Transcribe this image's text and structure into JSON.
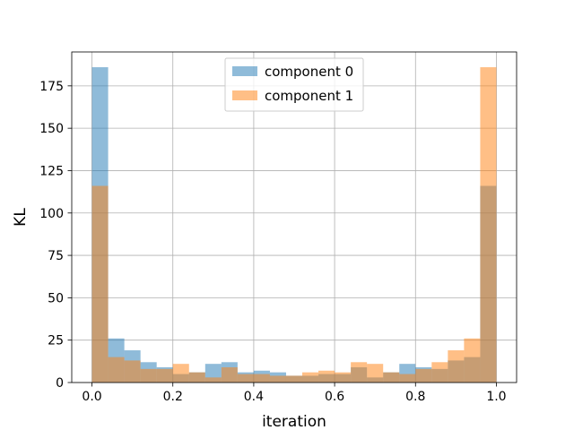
{
  "chart_data": {
    "type": "bar",
    "subtype": "overlaid-histogram",
    "title": "",
    "xlabel": "iteration",
    "ylabel": "KL",
    "xlim": [
      -0.05,
      1.05
    ],
    "ylim": [
      0,
      195
    ],
    "xticks": [
      0.0,
      0.2,
      0.4,
      0.6,
      0.8,
      1.0
    ],
    "xtick_labels": [
      "0.0",
      "0.2",
      "0.4",
      "0.6",
      "0.8",
      "1.0"
    ],
    "yticks": [
      0,
      25,
      50,
      75,
      100,
      125,
      150,
      175
    ],
    "ytick_labels": [
      "0",
      "25",
      "50",
      "75",
      "100",
      "125",
      "150",
      "175"
    ],
    "grid": true,
    "legend": "upper center",
    "bin_edges": [
      0.0,
      0.04,
      0.08,
      0.12,
      0.16,
      0.2,
      0.24,
      0.28,
      0.32,
      0.36,
      0.4,
      0.44,
      0.48,
      0.52,
      0.56,
      0.6,
      0.64,
      0.68,
      0.72,
      0.76,
      0.8,
      0.84,
      0.88,
      0.92,
      0.96,
      1.0
    ],
    "series": [
      {
        "name": "component 0",
        "color": "#1f77b4",
        "opacity": 0.5,
        "values": [
          186,
          26,
          19,
          12,
          9,
          5,
          6,
          11,
          12,
          6,
          7,
          6,
          4,
          4,
          5,
          5,
          9,
          3,
          6,
          11,
          9,
          8,
          13,
          15,
          116
        ]
      },
      {
        "name": "component 1",
        "color": "#ff7f0e",
        "opacity": 0.5,
        "values": [
          116,
          15,
          13,
          8,
          8,
          11,
          6,
          3,
          9,
          5,
          5,
          4,
          4,
          6,
          7,
          6,
          12,
          11,
          6,
          5,
          8,
          12,
          19,
          26,
          186
        ]
      }
    ]
  }
}
